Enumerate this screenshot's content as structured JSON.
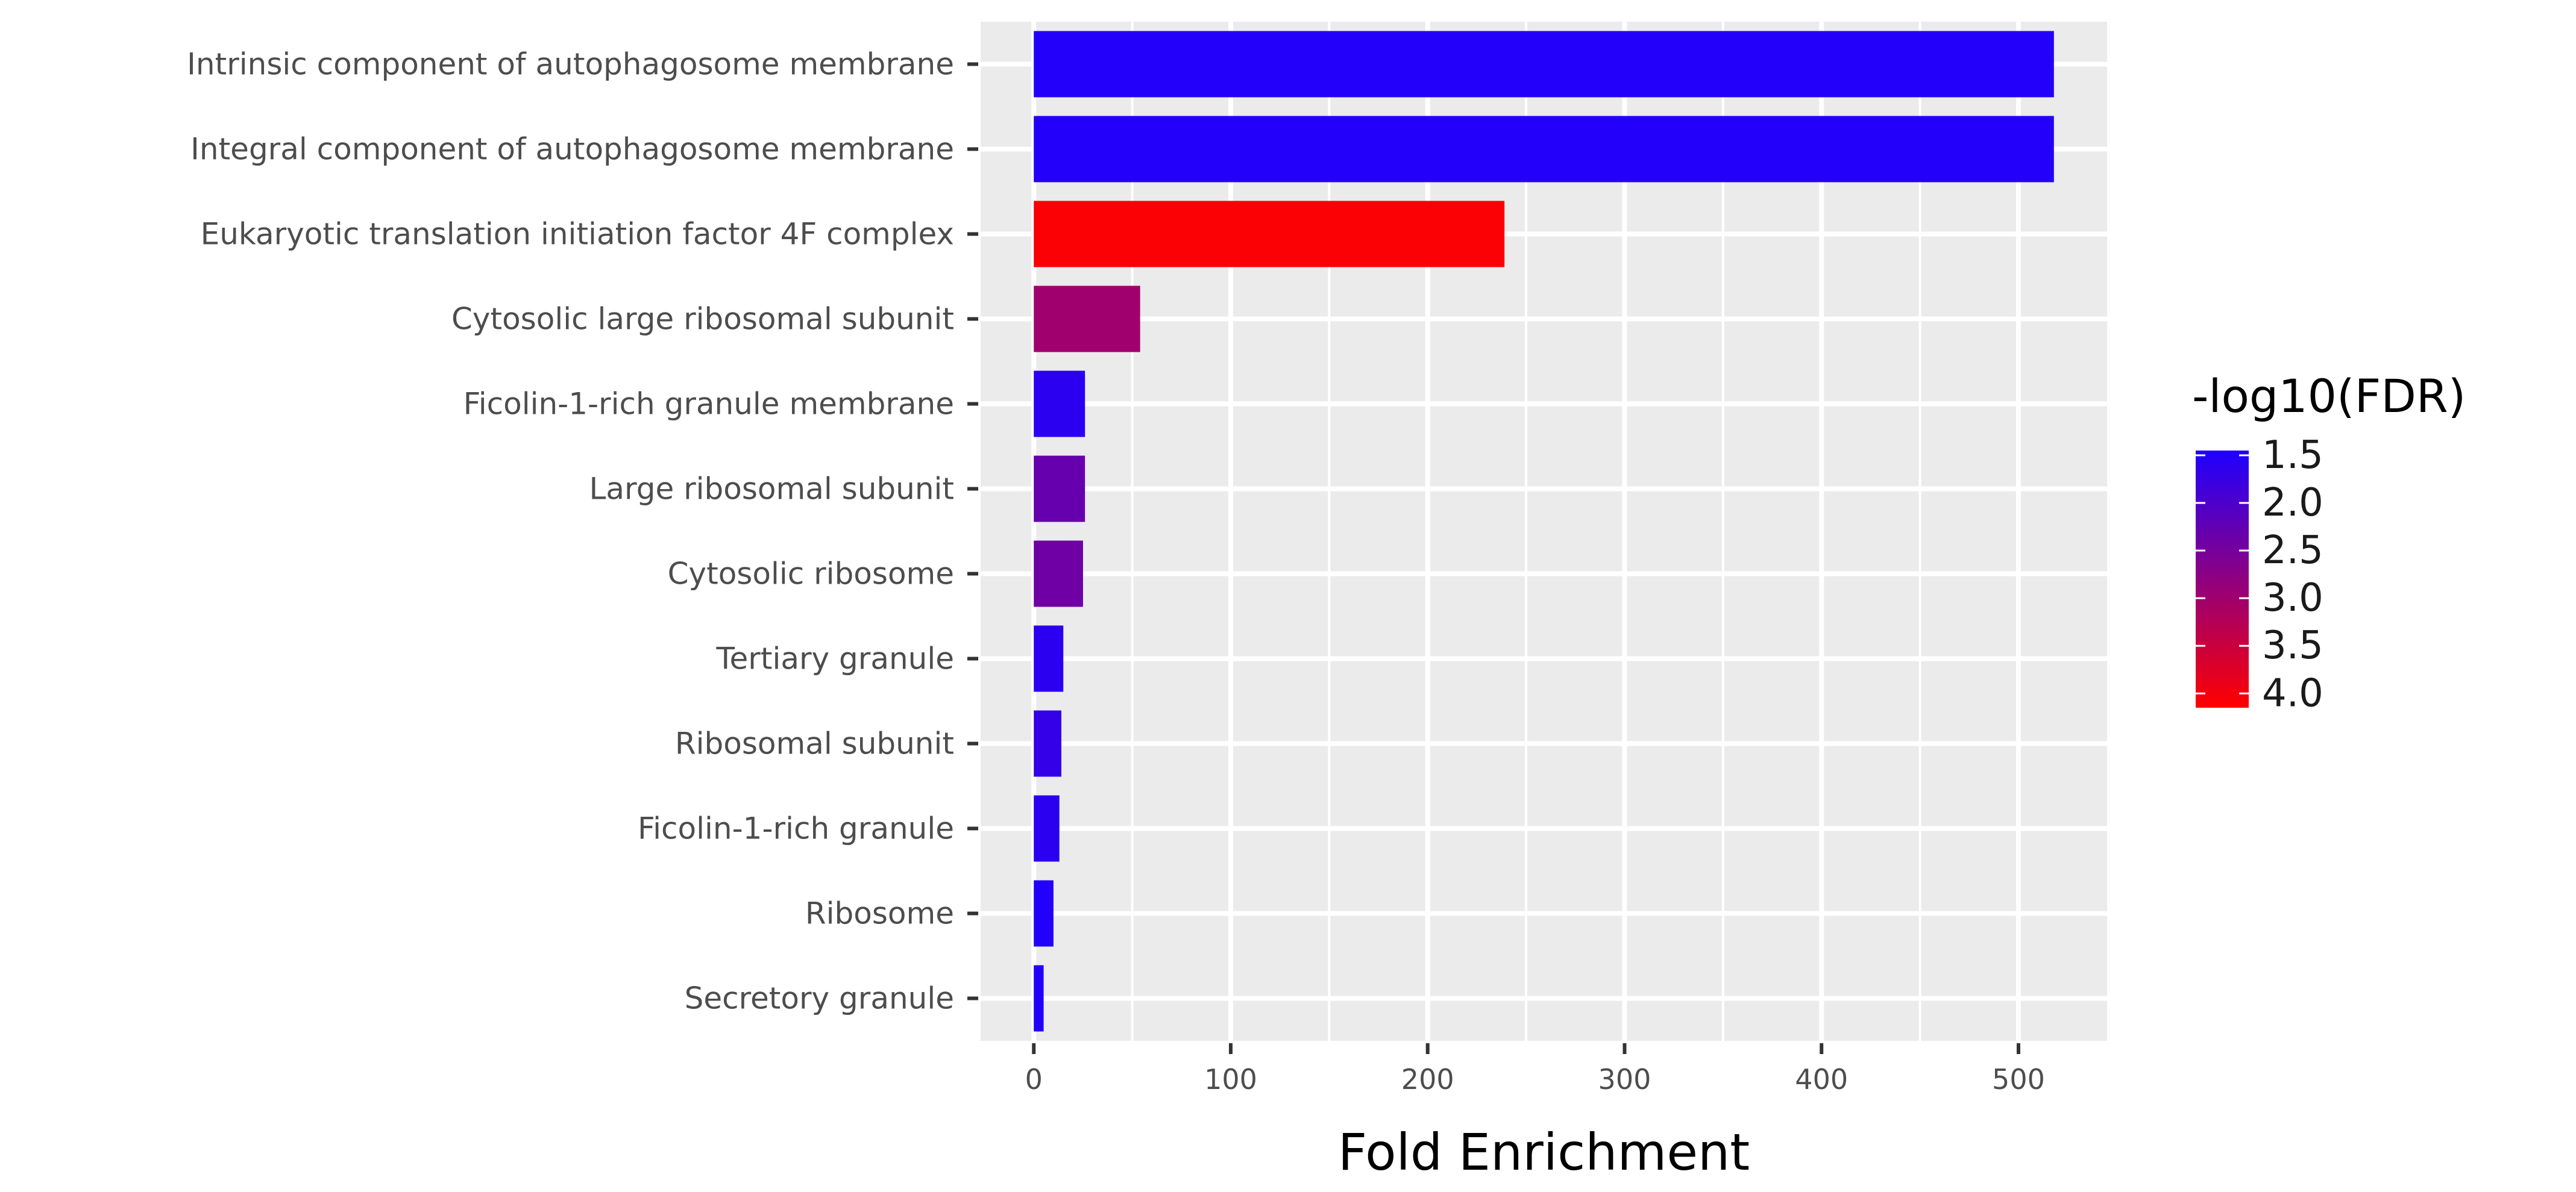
{
  "chart_data": {
    "type": "bar",
    "orientation": "horizontal",
    "categories": [
      "Intrinsic component of autophagosome membrane",
      "Integral component of autophagosome membrane",
      "Eukaryotic translation initiation factor 4F complex",
      "Cytosolic large ribosomal subunit",
      "Ficolin-1-rich granule membrane",
      "Large ribosomal subunit",
      "Cytosolic ribosome",
      "Tertiary granule",
      "Ribosomal subunit",
      "Ficolin-1-rich granule",
      "Ribosome",
      "Secretory granule"
    ],
    "values": [
      518,
      518,
      239,
      54,
      26,
      26,
      25,
      15,
      14,
      13,
      10,
      5
    ],
    "color_values": [
      1.5,
      1.5,
      4.1,
      3.0,
      1.6,
      2.3,
      2.4,
      1.6,
      1.7,
      1.6,
      1.5,
      1.5
    ],
    "xlabel": "Fold Enrichment",
    "ylabel": "",
    "xlim": [
      -27,
      545
    ],
    "x_ticks": [
      0,
      100,
      200,
      300,
      400,
      500
    ],
    "x_tick_labels": [
      "0",
      "100",
      "200",
      "300",
      "400",
      "500"
    ],
    "grid": true,
    "legend": {
      "title": "-log10(FDR)",
      "placement": "right",
      "labels": [
        "1.5",
        "2.0",
        "2.5",
        "3.0",
        "3.5",
        "4.0"
      ],
      "values": [
        1.5,
        2.0,
        2.5,
        3.0,
        3.5,
        4.0
      ],
      "range": [
        1.45,
        4.15
      ],
      "low_color": "#1f00ff",
      "high_color": "#ff0000"
    },
    "panel_background": "#ebebeb",
    "gridline_color": "#ffffff"
  }
}
